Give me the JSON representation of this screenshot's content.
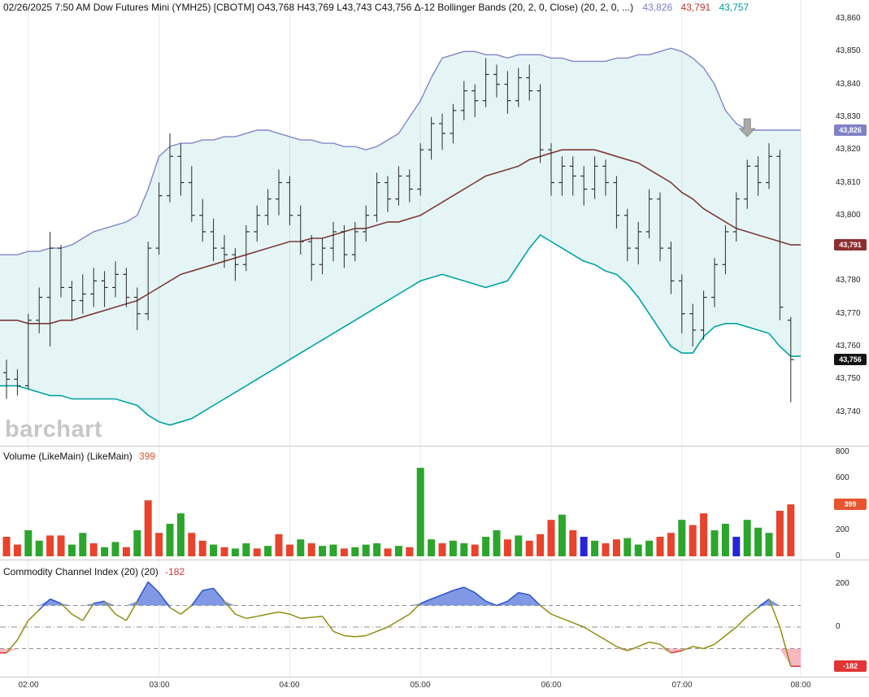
{
  "header": {
    "main": "02/26/2025 7:50 AM Dow Futures Mini (YMH25) [CBOTM] O43,768 H43,769 L43,743 C43,756 Δ-12 Bollinger Bands (20, 2, 0, Close)  (20, 2, 0, ...)",
    "upper_value": "43,826",
    "middle_value": "43,791",
    "lower_value": "43,757"
  },
  "watermark": "barchart",
  "panels": {
    "volume": {
      "title": "Volume (LikeMain)  (LikeMain)",
      "value": "399"
    },
    "cci": {
      "title": "Commodity Channel Index (20)  (20)",
      "value": "-182"
    }
  },
  "badges": {
    "upper": "43,826",
    "middle": "43,791",
    "close": "43,756",
    "volume": "399",
    "cci": "-182"
  },
  "axes": {
    "price": [
      "43,860",
      "43,850",
      "43,840",
      "43,830",
      "43,820",
      "43,810",
      "43,800",
      "43,790",
      "43,780",
      "43,770",
      "43,760",
      "43,750",
      "43,740"
    ],
    "volume": [
      "800",
      "600",
      "400",
      "200",
      "0"
    ],
    "cci": [
      "200",
      "0"
    ],
    "time": [
      "02:00",
      "03:00",
      "04:00",
      "05:00",
      "06:00",
      "07:00",
      "08:00"
    ]
  },
  "colors": {
    "bollinger_upper": "#8484ca",
    "bollinger_middle": "#7c3a3a",
    "bollinger_lower": "#00a2a2",
    "band_fill": "rgba(0,160,160,0.10)",
    "bar": "#2a2a2a",
    "volume_up": "#2ca52c",
    "volume_down": "#e8432c",
    "volume_neutral": "#2626d8",
    "cci_line": "#8e8e12",
    "cci_high_line": "#2f55cc",
    "cci_high_fill": "#6b86e0",
    "cci_low_line": "#e03434",
    "cci_low_fill": "#f6aab6",
    "grid": "#e9e9e9",
    "separator": "#c8c8c8",
    "marker": "#a9a9a9"
  },
  "chart_data": [
    {
      "type": "ohlc",
      "title": "Dow Futures Mini (YMH25) [CBOTM] 5-minute bars",
      "start_time": "01:50",
      "interval_minutes": 5,
      "ylim": [
        43740,
        43860
      ],
      "bars": [
        [
          43752,
          43756,
          43744,
          43750
        ],
        [
          43750,
          43753,
          43745,
          43748
        ],
        [
          43748,
          43770,
          43747,
          43768
        ],
        [
          43768,
          43778,
          43764,
          43775
        ],
        [
          43775,
          43795,
          43760,
          43790
        ],
        [
          43790,
          43791,
          43775,
          43778
        ],
        [
          43778,
          43780,
          43768,
          43774
        ],
        [
          43774,
          43782,
          43770,
          43776
        ],
        [
          43776,
          43784,
          43772,
          43780
        ],
        [
          43780,
          43783,
          43772,
          43778
        ],
        [
          43778,
          43786,
          43775,
          43782
        ],
        [
          43782,
          43784,
          43772,
          43775
        ],
        [
          43775,
          43778,
          43765,
          43770
        ],
        [
          43770,
          43792,
          43768,
          43790
        ],
        [
          43790,
          43810,
          43788,
          43806
        ],
        [
          43806,
          43825,
          43804,
          43818
        ],
        [
          43818,
          43822,
          43806,
          43810
        ],
        [
          43810,
          43815,
          43798,
          43800
        ],
        [
          43800,
          43805,
          43792,
          43795
        ],
        [
          43795,
          43799,
          43786,
          43790
        ],
        [
          43790,
          43794,
          43784,
          43788
        ],
        [
          43788,
          43790,
          43780,
          43785
        ],
        [
          43785,
          43797,
          43783,
          43795
        ],
        [
          43795,
          43803,
          43792,
          43800
        ],
        [
          43800,
          43808,
          43797,
          43805
        ],
        [
          43805,
          43814,
          43800,
          43810
        ],
        [
          43810,
          43812,
          43797,
          43800
        ],
        [
          43800,
          43803,
          43788,
          43792
        ],
        [
          43792,
          43794,
          43780,
          43785
        ],
        [
          43785,
          43793,
          43782,
          43790
        ],
        [
          43790,
          43798,
          43786,
          43795
        ],
        [
          43795,
          43797,
          43784,
          43788
        ],
        [
          43788,
          43798,
          43786,
          43795
        ],
        [
          43795,
          43803,
          43792,
          43800
        ],
        [
          43800,
          43813,
          43798,
          43810
        ],
        [
          43810,
          43812,
          43801,
          43805
        ],
        [
          43805,
          43815,
          43803,
          43812
        ],
        [
          43812,
          43814,
          43804,
          43808
        ],
        [
          43808,
          43822,
          43806,
          43820
        ],
        [
          43820,
          43830,
          43817,
          43828
        ],
        [
          43828,
          43831,
          43820,
          43825
        ],
        [
          43825,
          43834,
          43822,
          43832
        ],
        [
          43832,
          43841,
          43829,
          43838
        ],
        [
          43838,
          43840,
          43830,
          43835
        ],
        [
          43835,
          43848,
          43833,
          43843
        ],
        [
          43843,
          43846,
          43836,
          43840
        ],
        [
          43840,
          43844,
          43831,
          43835
        ],
        [
          43835,
          43845,
          43833,
          43842
        ],
        [
          43842,
          43846,
          43835,
          43838
        ],
        [
          43838,
          43840,
          43816,
          43820
        ],
        [
          43820,
          43822,
          43806,
          43810
        ],
        [
          43810,
          43818,
          43806,
          43815
        ],
        [
          43815,
          43818,
          43806,
          43812
        ],
        [
          43812,
          43815,
          43803,
          43808
        ],
        [
          43808,
          43818,
          43805,
          43815
        ],
        [
          43815,
          43817,
          43806,
          43810
        ],
        [
          43810,
          43812,
          43796,
          43800
        ],
        [
          43800,
          43802,
          43786,
          43790
        ],
        [
          43790,
          43798,
          43785,
          43795
        ],
        [
          43795,
          43808,
          43793,
          43805
        ],
        [
          43805,
          43807,
          43786,
          43790
        ],
        [
          43790,
          43792,
          43776,
          43780
        ],
        [
          43780,
          43782,
          43764,
          43770
        ],
        [
          43770,
          43773,
          43760,
          43765
        ],
        [
          43765,
          43777,
          43762,
          43775
        ],
        [
          43775,
          43787,
          43772,
          43785
        ],
        [
          43785,
          43797,
          43782,
          43795
        ],
        [
          43795,
          43807,
          43792,
          43805
        ],
        [
          43805,
          43817,
          43802,
          43815
        ],
        [
          43815,
          43818,
          43806,
          43810
        ],
        [
          43810,
          43822,
          43808,
          43818
        ],
        [
          43818,
          43820,
          43768,
          43772
        ],
        [
          43768,
          43769,
          43743,
          43756
        ]
      ],
      "overlays": {
        "name": "Bollinger Bands (20, 2, 0, Close)",
        "upper": [
          43788,
          43788,
          43789,
          43789,
          43790,
          43790,
          43791,
          43793,
          43795,
          43796,
          43797,
          43798,
          43800,
          43808,
          43818,
          43821,
          43822,
          43822,
          43823,
          43823,
          43824,
          43824,
          43825,
          43826,
          43826,
          43825,
          43824,
          43823,
          43823,
          43822,
          43822,
          43821,
          43821,
          43820,
          43821,
          43823,
          43825,
          43830,
          43835,
          43842,
          43848,
          43849,
          43850,
          43850,
          43849,
          43849,
          43848,
          43849,
          43849,
          43849,
          43848,
          43848,
          43847,
          43847,
          43847,
          43847,
          43848,
          43848,
          43849,
          43849,
          43850,
          43851,
          43850,
          43848,
          43845,
          43840,
          43832,
          43828,
          43826,
          43826,
          43826,
          43826,
          43826
        ],
        "middle": [
          43768,
          43768,
          43767,
          43767,
          43767,
          43768,
          43768,
          43769,
          43770,
          43771,
          43772,
          43773,
          43774,
          43776,
          43778,
          43780,
          43782,
          43783,
          43784,
          43785,
          43786,
          43787,
          43788,
          43789,
          43790,
          43791,
          43792,
          43792,
          43793,
          43793,
          43794,
          43795,
          43796,
          43796,
          43797,
          43798,
          43798,
          43799,
          43800,
          43802,
          43804,
          43806,
          43808,
          43810,
          43812,
          43813,
          43814,
          43815,
          43817,
          43818,
          43819,
          43820,
          43820,
          43820,
          43820,
          43819,
          43818,
          43817,
          43816,
          43814,
          43812,
          43810,
          43807,
          43805,
          43802,
          43800,
          43798,
          43796,
          43795,
          43794,
          43793,
          43792,
          43791
        ],
        "lower": [
          43748,
          43748,
          43747,
          43746,
          43745,
          43745,
          43744,
          43744,
          43744,
          43744,
          43744,
          43743,
          43742,
          43739,
          43737,
          43736,
          43737,
          43738,
          43740,
          43742,
          43744,
          43746,
          43748,
          43750,
          43752,
          43754,
          43756,
          43758,
          43760,
          43762,
          43764,
          43766,
          43768,
          43770,
          43772,
          43774,
          43776,
          43778,
          43780,
          43781,
          43782,
          43781,
          43780,
          43779,
          43778,
          43779,
          43780,
          43785,
          43790,
          43794,
          43792,
          43790,
          43788,
          43786,
          43785,
          43783,
          43782,
          43779,
          43775,
          43770,
          43765,
          43760,
          43758,
          43758,
          43763,
          43766,
          43767,
          43767,
          43766,
          43765,
          43764,
          43760,
          43757
        ]
      },
      "last_values": {
        "upper": 43826,
        "middle": 43791,
        "lower": 43757,
        "close": 43756
      },
      "marker": {
        "type": "arrow-down",
        "time": "07:30",
        "price": 43824
      }
    },
    {
      "type": "bar",
      "title": "Volume (LikeMain)",
      "ylim": [
        0,
        800
      ],
      "values": [
        150,
        90,
        200,
        120,
        160,
        160,
        90,
        180,
        100,
        70,
        110,
        70,
        200,
        430,
        180,
        250,
        330,
        180,
        120,
        90,
        70,
        60,
        100,
        60,
        80,
        170,
        90,
        130,
        100,
        80,
        90,
        60,
        70,
        90,
        100,
        60,
        80,
        70,
        680,
        130,
        100,
        120,
        100,
        90,
        150,
        200,
        130,
        160,
        120,
        170,
        280,
        320,
        200,
        150,
        120,
        100,
        130,
        140,
        90,
        120,
        150,
        180,
        280,
        240,
        330,
        200,
        250,
        150,
        280,
        220,
        180,
        350,
        399
      ],
      "colors": [
        "down",
        "down",
        "up",
        "up",
        "down",
        "down",
        "up",
        "up",
        "down",
        "up",
        "up",
        "down",
        "up",
        "down",
        "down",
        "up",
        "up",
        "down",
        "down",
        "up",
        "down",
        "up",
        "up",
        "down",
        "up",
        "down",
        "down",
        "up",
        "down",
        "up",
        "up",
        "down",
        "up",
        "up",
        "up",
        "down",
        "up",
        "down",
        "up",
        "up",
        "down",
        "up",
        "up",
        "down",
        "up",
        "up",
        "down",
        "up",
        "down",
        "down",
        "down",
        "up",
        "down",
        "neutral",
        "up",
        "down",
        "down",
        "up",
        "up",
        "up",
        "down",
        "down",
        "up",
        "down",
        "down",
        "up",
        "up",
        "neutral",
        "up",
        "up",
        "up",
        "down",
        "down"
      ],
      "last_value": 399
    },
    {
      "type": "line",
      "title": "Commodity Channel Index (20)",
      "ylim": [
        -250,
        250
      ],
      "reference_lines": [
        100,
        0,
        -100
      ],
      "values": [
        -120,
        -60,
        30,
        80,
        130,
        110,
        60,
        30,
        110,
        120,
        60,
        30,
        120,
        210,
        160,
        90,
        60,
        100,
        170,
        180,
        120,
        60,
        40,
        50,
        60,
        70,
        60,
        40,
        45,
        50,
        -20,
        -40,
        -45,
        -40,
        -20,
        0,
        30,
        60,
        110,
        130,
        150,
        170,
        185,
        160,
        120,
        100,
        120,
        160,
        150,
        100,
        60,
        40,
        20,
        0,
        -30,
        -60,
        -90,
        -110,
        -90,
        -70,
        -80,
        -120,
        -110,
        -90,
        -100,
        -80,
        -40,
        0,
        50,
        90,
        130,
        0,
        -182
      ],
      "last_value": -182
    }
  ]
}
